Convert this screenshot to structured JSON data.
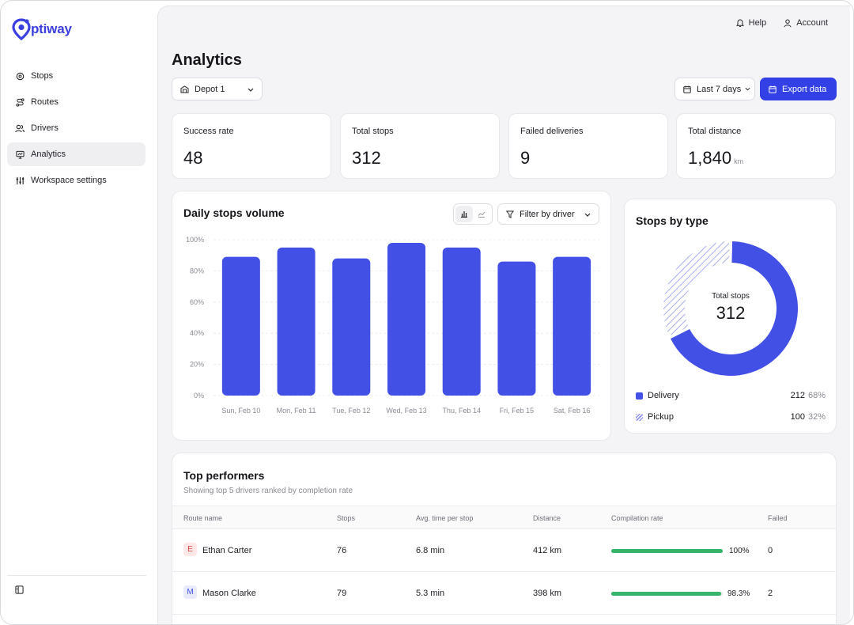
{
  "app": {
    "name": "ptiway"
  },
  "sidebar": {
    "items": [
      {
        "label": "Stops",
        "icon": "pin-icon"
      },
      {
        "label": "Routes",
        "icon": "route-icon"
      },
      {
        "label": "Drivers",
        "icon": "users-icon"
      },
      {
        "label": "Analytics",
        "icon": "analytics-icon",
        "active": true
      },
      {
        "label": "Workspace settings",
        "icon": "settings-icon"
      }
    ]
  },
  "topbar": {
    "help": "Help",
    "account": "Account"
  },
  "page": {
    "title": "Analytics"
  },
  "filters": {
    "depot": "Depot 1",
    "range": "Last 7 days",
    "export": "Export data"
  },
  "kpis": [
    {
      "label": "Success rate",
      "value": "48",
      "unit": ""
    },
    {
      "label": "Total stops",
      "value": "312",
      "unit": ""
    },
    {
      "label": "Failed deliveries",
      "value": "9",
      "unit": ""
    },
    {
      "label": "Total distance",
      "value": "1,840",
      "unit": "km"
    }
  ],
  "daily_chart": {
    "title": "Daily stops volume",
    "filter_label": "Filter by driver"
  },
  "chart_data": {
    "type": "bar",
    "title": "Daily stops volume",
    "categories": [
      "Sun, Feb 10",
      "Mon, Feb 11",
      "Tue, Feb 12",
      "Wed, Feb 13",
      "Thu, Feb 14",
      "Fri, Feb 15",
      "Sat, Feb 16"
    ],
    "values": [
      89,
      95,
      88,
      98,
      95,
      86,
      89
    ],
    "yticks": [
      "0%",
      "20%",
      "40%",
      "60%",
      "80%",
      "100%"
    ],
    "ylim": [
      0,
      100
    ],
    "grid": true,
    "color": "#4350e6"
  },
  "stops_by_type": {
    "title": "Stops by type",
    "center_label": "Total stops",
    "center_value": "312",
    "legend": [
      {
        "label": "Delivery",
        "count": "212",
        "pct": "68%",
        "value": 68,
        "color": "#4350e6"
      },
      {
        "label": "Pickup",
        "count": "100",
        "pct": "32%",
        "value": 32,
        "color": "#9aa0ec"
      }
    ]
  },
  "performers": {
    "title": "Top performers",
    "subtitle": "Showing top 5 drivers ranked by completion rate",
    "columns": [
      "Route name",
      "Stops",
      "Avg. time per stop",
      "Distance",
      "Compilation rate",
      "Failed"
    ],
    "rows": [
      {
        "initial": "E",
        "name": "Ethan Carter",
        "stops": "76",
        "avg": "6.8 min",
        "distance": "412 km",
        "rate": "100%",
        "rate_value": 100,
        "failed": "0",
        "avatar_bg": "#fde7e7",
        "avatar_fg": "#d84848"
      },
      {
        "initial": "M",
        "name": "Mason Clarke",
        "stops": "79",
        "avg": "5.3 min",
        "distance": "398 km",
        "rate": "98.3%",
        "rate_value": 98.3,
        "failed": "2",
        "avatar_bg": "#e9eafc",
        "avatar_fg": "#4350e6"
      }
    ]
  }
}
